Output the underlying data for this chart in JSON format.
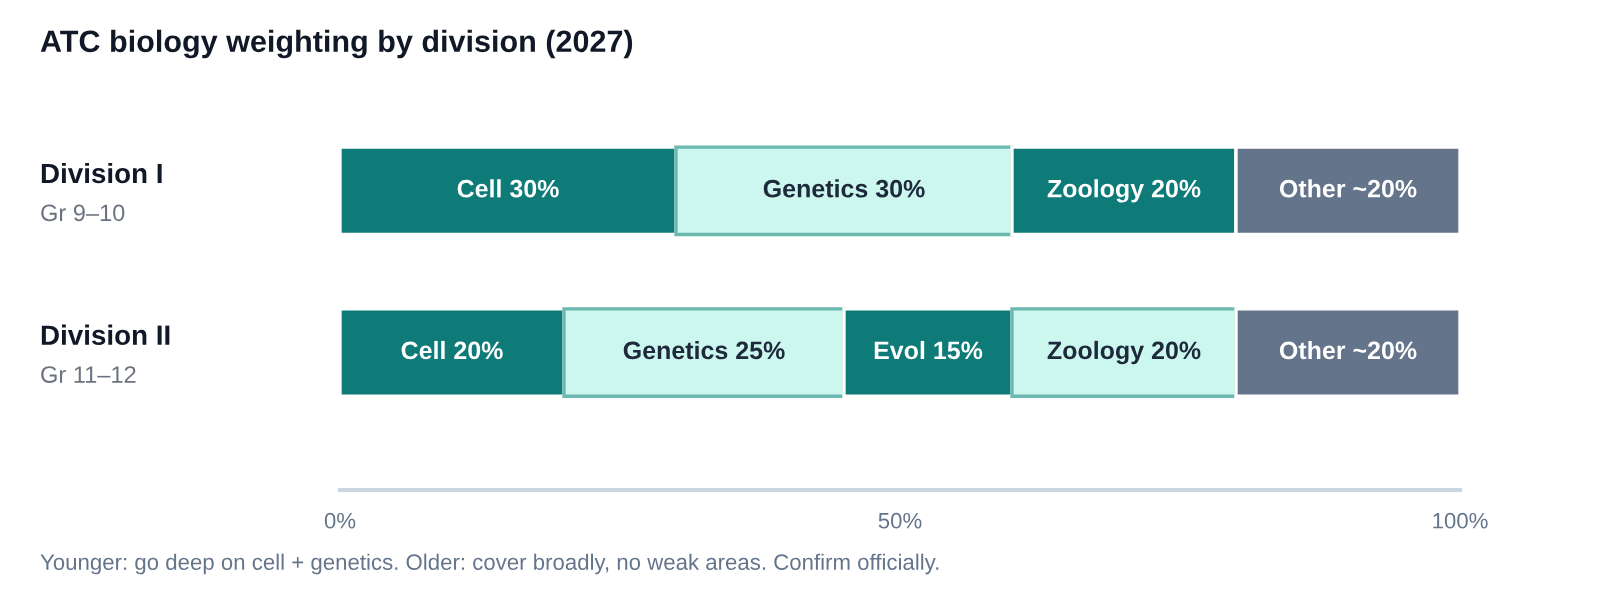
{
  "chart_data": {
    "type": "bar",
    "orientation": "horizontal",
    "stacked": true,
    "title": "ATC biology weighting by division (2027)",
    "categories": [
      "Division I\nGr 9–10",
      "Division II\nGr 11–12"
    ],
    "series": [
      {
        "colors": [
          "#0f7b78",
          "#0f7b78"
        ],
        "values": [
          30,
          20
        ],
        "value_labels": [
          "Cell 30%",
          "Cell 20%"
        ]
      },
      {
        "colors": [
          "#ccf7ee",
          "#ccf7ee"
        ],
        "values": [
          30,
          25
        ],
        "value_labels": [
          "Genetics 30%",
          "Genetics 25%"
        ]
      },
      {
        "colors": [
          "#0f7b78",
          "#0f7b78"
        ],
        "values": [
          null,
          15
        ],
        "value_labels": [
          null,
          "Evol 15%"
        ]
      },
      {
        "colors": [
          "#0f7b78",
          "#ccf7ee"
        ],
        "values": [
          20,
          20
        ],
        "value_labels": [
          "Zoology 20%",
          "Zoology 20%"
        ]
      },
      {
        "colors": [
          "#64748b",
          "#64748b"
        ],
        "values": [
          20,
          20
        ],
        "value_labels": [
          "Other ~20%",
          "Other ~20%"
        ]
      }
    ],
    "xlim": [
      0,
      100
    ],
    "xticks": [
      {
        "value": 0,
        "label": "0%"
      },
      {
        "value": 50,
        "label": "50%"
      },
      {
        "value": 100,
        "label": "100%"
      }
    ],
    "grid": false,
    "legend": false,
    "annotations": [
      "Younger: go deep on cell + genetics. Older: cover broadly, no weak areas. Confirm officially."
    ]
  }
}
